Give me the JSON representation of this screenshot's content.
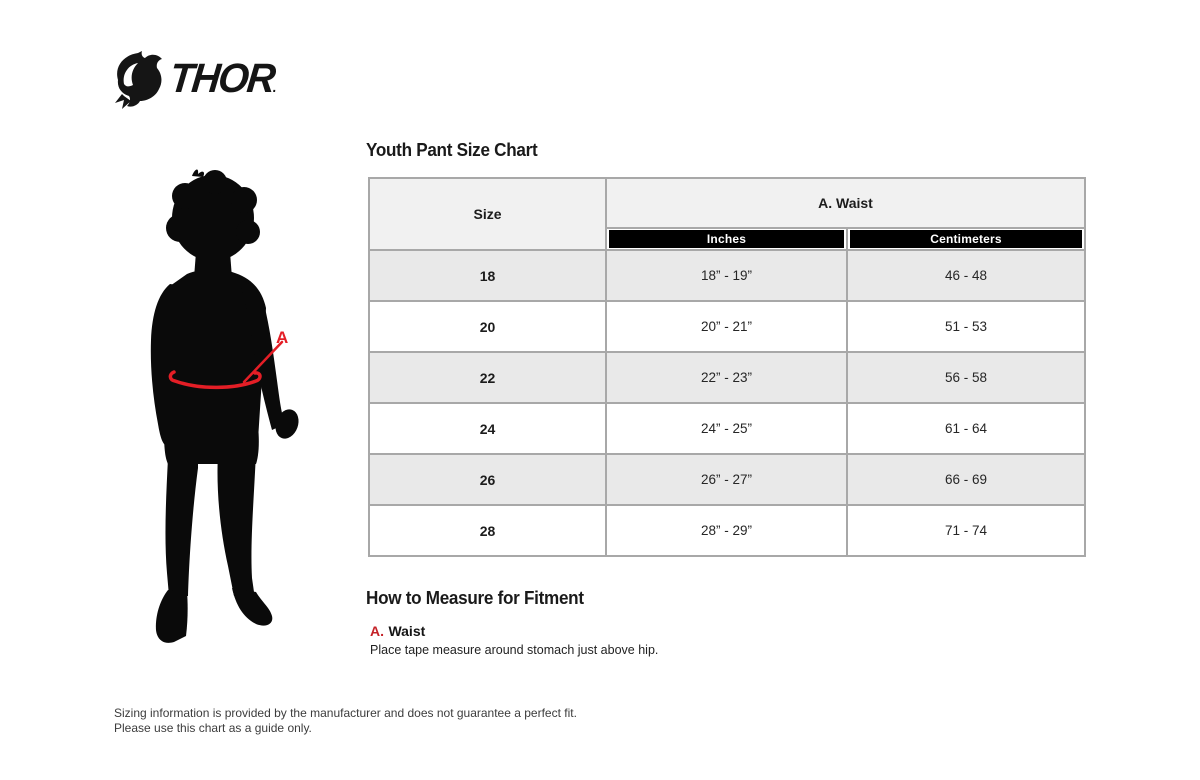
{
  "brand": {
    "name": "THOR",
    "period": "."
  },
  "size_chart": {
    "title": "Youth Pant Size Chart",
    "table": {
      "size_header": "Size",
      "group_header": "A. Waist",
      "sub_headers": [
        "Inches",
        "Centimeters"
      ],
      "rows": [
        {
          "size": "18",
          "inches": "18” - 19”",
          "centimeters": "46 - 48"
        },
        {
          "size": "20",
          "inches": "20” - 21”",
          "centimeters": "51 - 53"
        },
        {
          "size": "22",
          "inches": "22” - 23”",
          "centimeters": "56 - 58"
        },
        {
          "size": "24",
          "inches": "24” - 25”",
          "centimeters": "61 - 64"
        },
        {
          "size": "26",
          "inches": "26” - 27”",
          "centimeters": "66 - 69"
        },
        {
          "size": "28",
          "inches": "28” - 29”",
          "centimeters": "71 - 74"
        }
      ]
    }
  },
  "figure": {
    "annotation_label": "A"
  },
  "measure": {
    "title": "How to Measure for Fitment",
    "items": [
      {
        "key": "A.",
        "name": "Waist",
        "description": "Place tape measure around stomach just above hip."
      }
    ]
  },
  "footer": {
    "lines": [
      "Sizing information is provided by the manufacturer and does not guarantee a perfect fit.",
      "Please use this chart as a guide only."
    ]
  },
  "colors": {
    "accent_red": "#e41e26",
    "measure_key_red": "#c42127",
    "table_border": "#a8a8a8",
    "row_alt": "#e9e9e9",
    "header_bg": "#f1f1f1",
    "subheader_bg": "#000000"
  }
}
